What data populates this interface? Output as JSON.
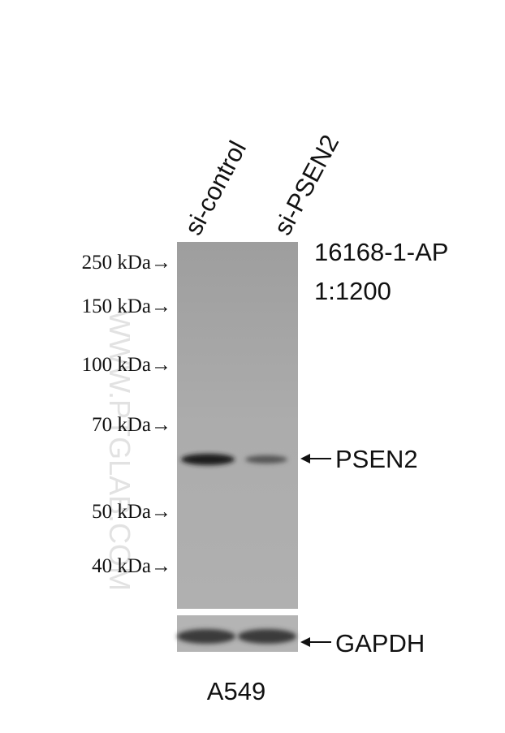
{
  "lanes": [
    "si-control",
    "si-PSEN2"
  ],
  "markers": [
    "250 kDa→",
    "150 kDa→",
    "100 kDa→",
    "70 kDa→",
    "50 kDa→",
    "40 kDa→"
  ],
  "antibody": {
    "id": "16168-1-AP",
    "dilution": "1:1200"
  },
  "bands": [
    "PSEN2",
    "GAPDH"
  ],
  "cell_line": "A549",
  "watermark": "WWW.PTGLAB.COM"
}
